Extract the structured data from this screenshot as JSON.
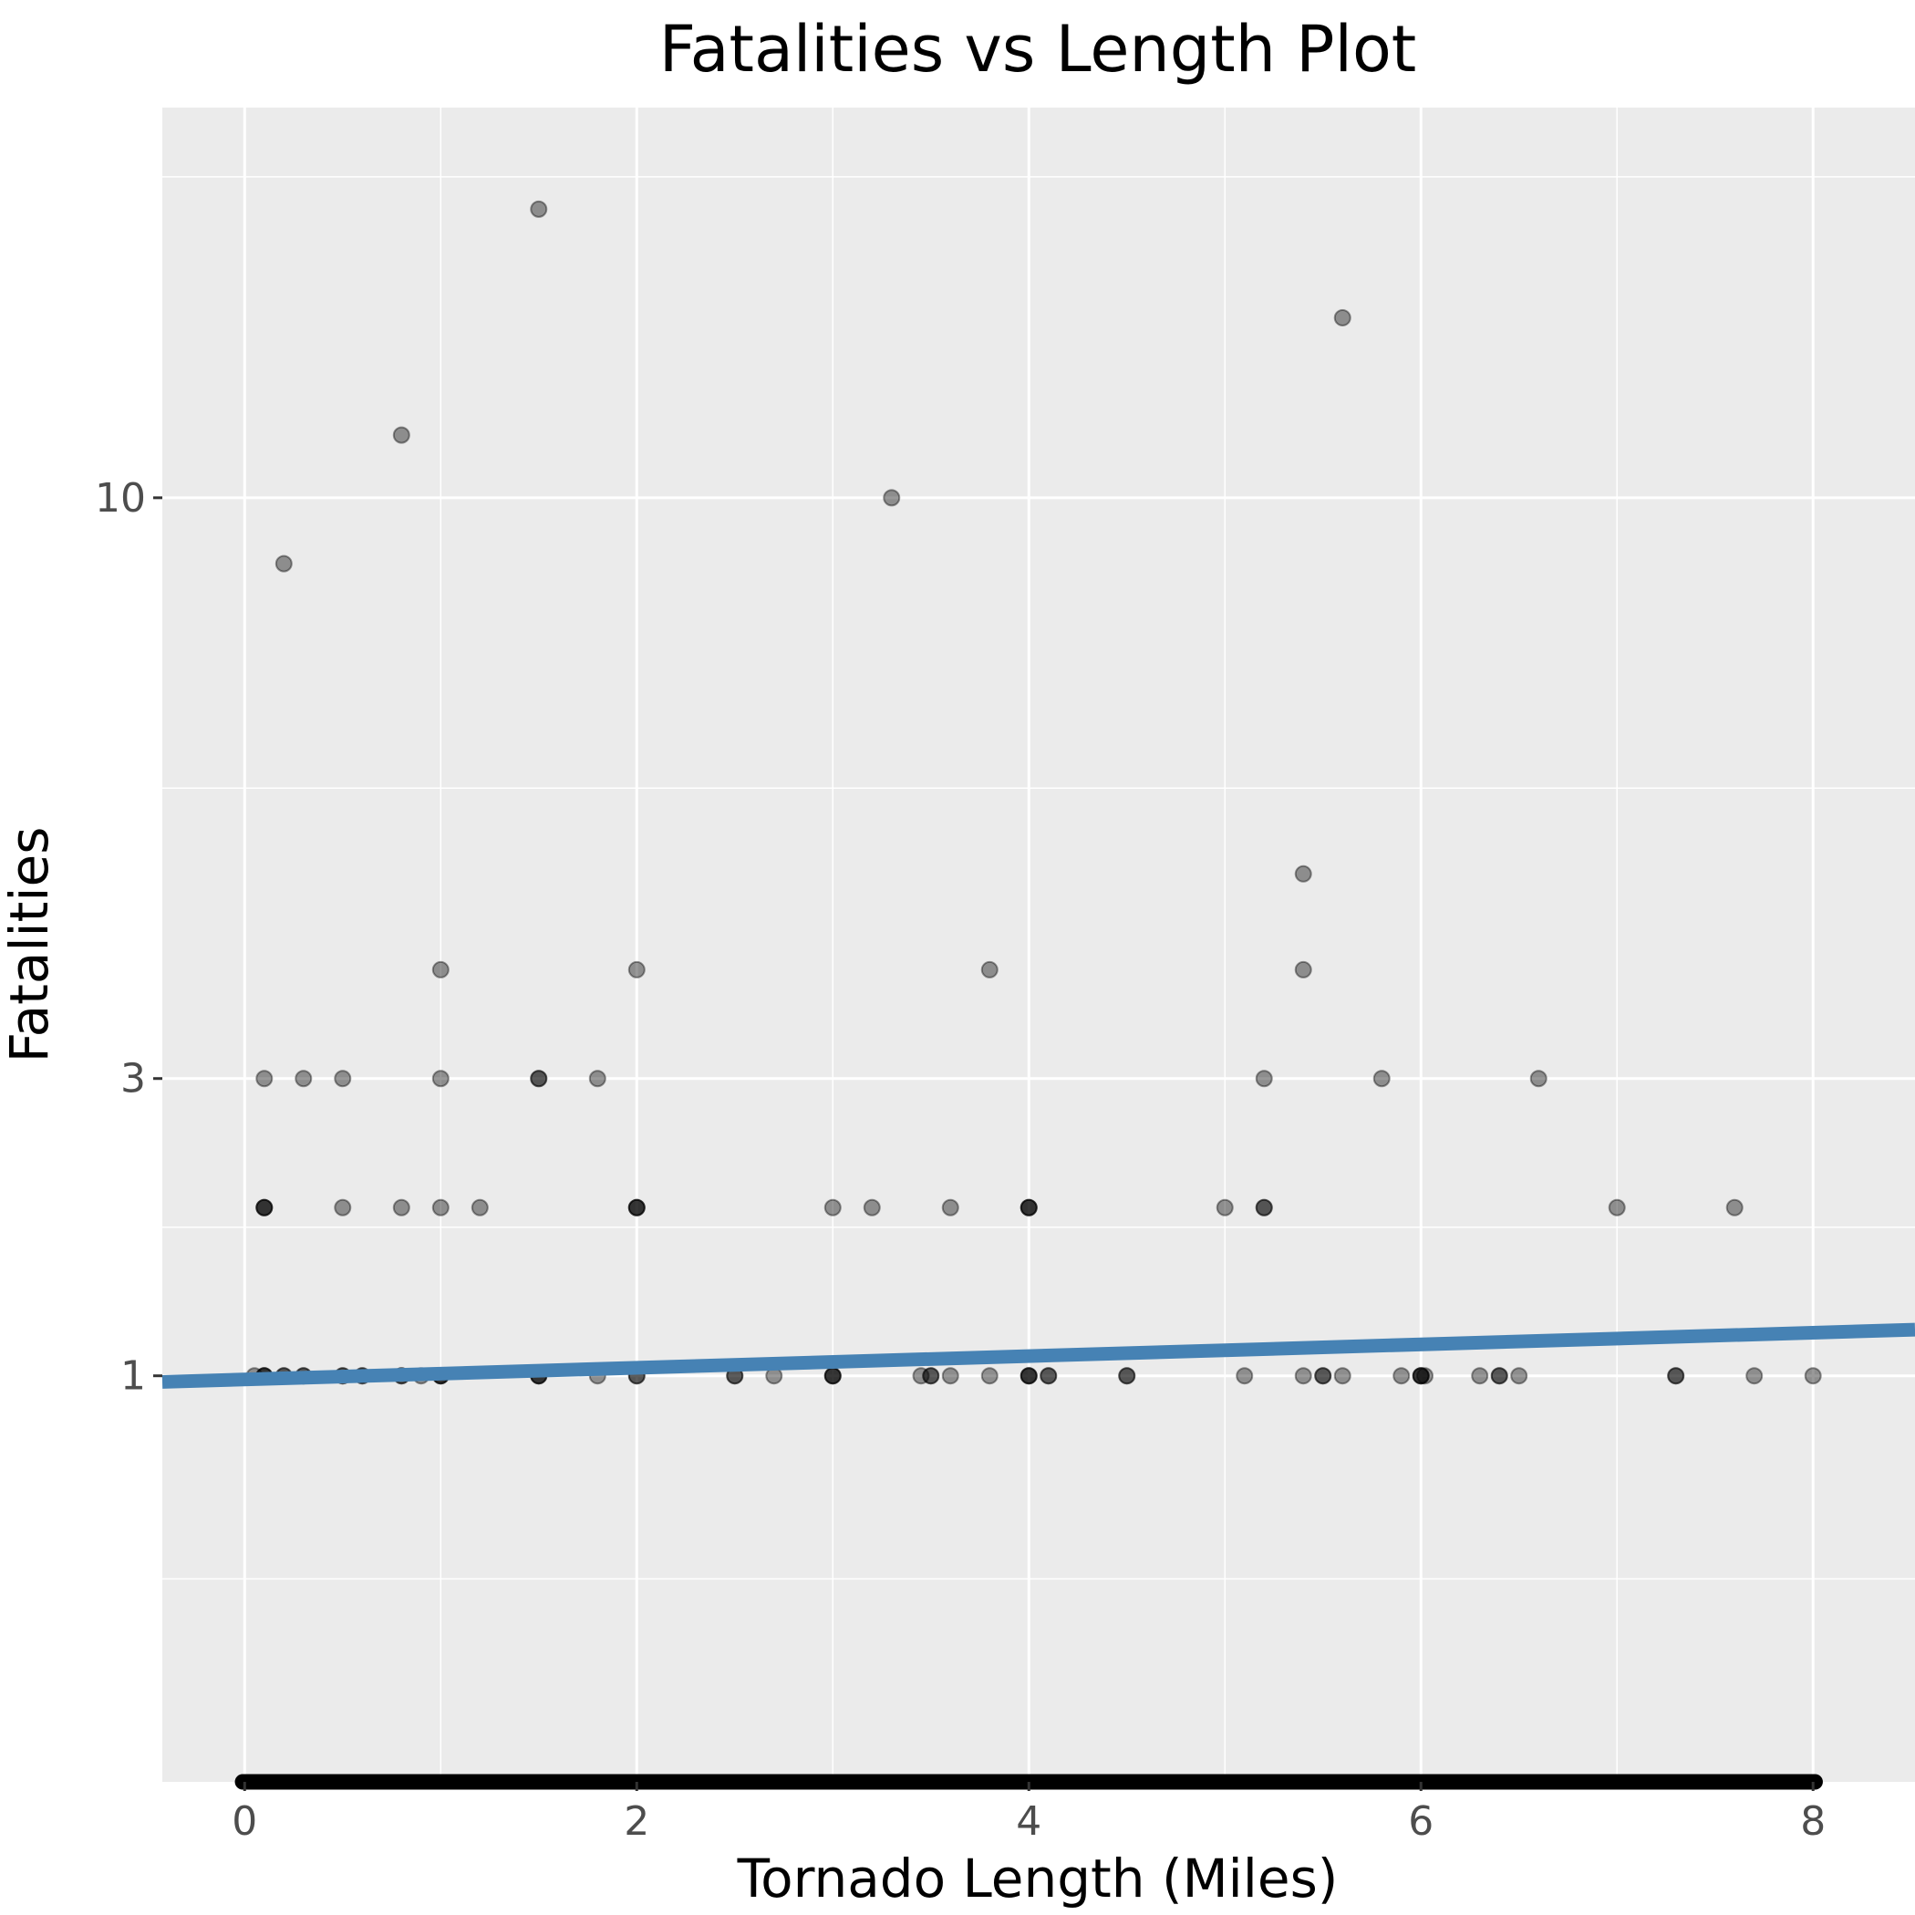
{
  "chart_data": {
    "type": "scatter",
    "title": "Fatalities vs Length Plot",
    "xlabel": "Tornado Length (Miles)",
    "ylabel": "Fatalities",
    "x_scale": "linear",
    "y_scale": "sqrt",
    "xlim": [
      -0.42,
      8.52
    ],
    "ylim": [
      0,
      17
    ],
    "x_ticks": [
      0,
      2,
      4,
      6,
      8
    ],
    "x_tick_labels": [
      "0",
      "2",
      "4",
      "6",
      "8"
    ],
    "y_ticks": [
      1,
      3,
      10
    ],
    "y_tick_labels": [
      "1",
      "3",
      "10"
    ],
    "grid": true,
    "panel_background": "#ebebeb",
    "point_color": "#000000",
    "point_alpha": 0.4,
    "trend_color": "#4682b4",
    "trend_line": {
      "x": [
        -0.42,
        8.52
      ],
      "y": [
        0.97,
        1.24
      ]
    },
    "series": [
      {
        "points": [
          [
            1.5,
            15
          ],
          [
            5.6,
            13
          ],
          [
            0.8,
            11
          ],
          [
            0.2,
            9
          ],
          [
            3.3,
            10
          ],
          [
            5.4,
            5
          ],
          [
            1.0,
            4
          ],
          [
            2.0,
            4
          ],
          [
            3.8,
            4
          ],
          [
            5.4,
            4
          ],
          [
            0.1,
            3
          ],
          [
            0.3,
            3
          ],
          [
            0.5,
            3
          ],
          [
            1.0,
            3
          ],
          [
            1.5,
            3
          ],
          [
            1.5,
            3
          ],
          [
            1.8,
            3
          ],
          [
            5.2,
            3
          ],
          [
            5.8,
            3
          ],
          [
            6.6,
            3
          ],
          [
            0.1,
            2
          ],
          [
            0.1,
            2
          ],
          [
            0.1,
            2
          ],
          [
            0.5,
            2
          ],
          [
            0.8,
            2
          ],
          [
            1.0,
            2
          ],
          [
            1.2,
            2
          ],
          [
            2.0,
            2
          ],
          [
            2.0,
            2
          ],
          [
            2.0,
            2
          ],
          [
            3.0,
            2
          ],
          [
            3.2,
            2
          ],
          [
            3.6,
            2
          ],
          [
            4.0,
            2
          ],
          [
            4.0,
            2
          ],
          [
            4.0,
            2
          ],
          [
            5.0,
            2
          ],
          [
            5.2,
            2
          ],
          [
            5.2,
            2
          ],
          [
            7.0,
            2
          ],
          [
            7.6,
            2
          ],
          [
            0.05,
            1
          ],
          [
            0.1,
            1
          ],
          [
            0.1,
            1
          ],
          [
            0.1,
            1
          ],
          [
            0.2,
            1
          ],
          [
            0.2,
            1
          ],
          [
            0.3,
            1
          ],
          [
            0.3,
            1
          ],
          [
            0.5,
            1
          ],
          [
            0.5,
            1
          ],
          [
            0.6,
            1
          ],
          [
            0.6,
            1
          ],
          [
            0.8,
            1
          ],
          [
            0.8,
            1
          ],
          [
            0.9,
            1
          ],
          [
            1.0,
            1
          ],
          [
            1.0,
            1
          ],
          [
            1.0,
            1
          ],
          [
            1.5,
            1
          ],
          [
            1.5,
            1
          ],
          [
            1.5,
            1
          ],
          [
            1.8,
            1
          ],
          [
            2.0,
            1
          ],
          [
            2.0,
            1
          ],
          [
            2.5,
            1
          ],
          [
            2.5,
            1
          ],
          [
            2.7,
            1
          ],
          [
            3.0,
            1
          ],
          [
            3.0,
            1
          ],
          [
            3.0,
            1
          ],
          [
            3.45,
            1
          ],
          [
            3.5,
            1
          ],
          [
            3.5,
            1
          ],
          [
            3.6,
            1
          ],
          [
            3.8,
            1
          ],
          [
            4.0,
            1
          ],
          [
            4.0,
            1
          ],
          [
            4.0,
            1
          ],
          [
            4.1,
            1
          ],
          [
            4.1,
            1
          ],
          [
            4.5,
            1
          ],
          [
            4.5,
            1
          ],
          [
            5.1,
            1
          ],
          [
            5.4,
            1
          ],
          [
            5.5,
            1
          ],
          [
            5.5,
            1
          ],
          [
            5.6,
            1
          ],
          [
            5.9,
            1
          ],
          [
            6.0,
            1
          ],
          [
            6.0,
            1
          ],
          [
            6.0,
            1
          ],
          [
            6.02,
            1
          ],
          [
            6.3,
            1
          ],
          [
            6.4,
            1
          ],
          [
            6.4,
            1
          ],
          [
            6.5,
            1
          ],
          [
            7.3,
            1
          ],
          [
            7.3,
            1
          ],
          [
            7.7,
            1
          ],
          [
            8.0,
            1
          ]
        ]
      }
    ]
  }
}
